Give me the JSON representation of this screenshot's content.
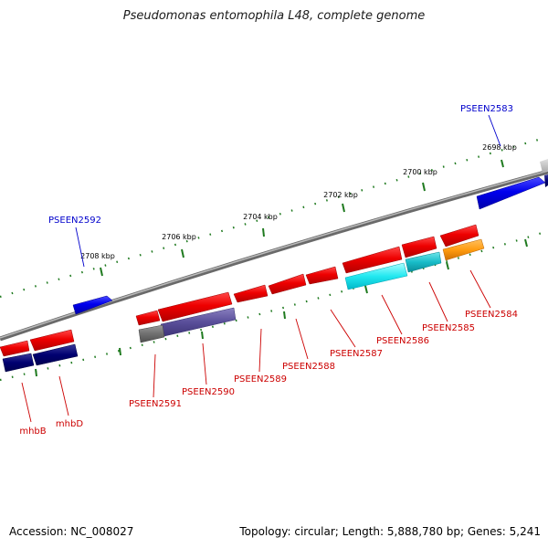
{
  "title": "Pseudomonas entomophila L48, complete genome",
  "footer": {
    "accession": "Accession: NC_008027",
    "info": "Topology: circular; Length: 5,888,780 bp; Genes: 5,241"
  },
  "colors": {
    "backbone": "#808080",
    "tick": "#1f7a1f",
    "forward_gene": "#0000ee",
    "label_blue": "#0000cc",
    "label_red": "#cc0000",
    "reverse_gene": "#ee0000"
  },
  "ruler": [
    {
      "label": "2698 kbp"
    },
    {
      "label": "2700 kbp"
    },
    {
      "label": "2702 kbp"
    },
    {
      "label": "2704 kbp"
    },
    {
      "label": "2706 kbp"
    },
    {
      "label": "2708 kbp"
    }
  ],
  "gene_labels": [
    {
      "label": "PSEEN2583",
      "strand": "forward"
    },
    {
      "label": "PSEEN2592",
      "strand": "forward"
    },
    {
      "label": "PSEEN2584",
      "strand": "reverse"
    },
    {
      "label": "PSEEN2585",
      "strand": "reverse"
    },
    {
      "label": "PSEEN2586",
      "strand": "reverse"
    },
    {
      "label": "PSEEN2587",
      "strand": "reverse"
    },
    {
      "label": "PSEEN2588",
      "strand": "reverse"
    },
    {
      "label": "PSEEN2589",
      "strand": "reverse"
    },
    {
      "label": "PSEEN2590",
      "strand": "reverse"
    },
    {
      "label": "PSEEN2591",
      "strand": "reverse"
    },
    {
      "label": "mhbD",
      "strand": "reverse"
    },
    {
      "label": "mhbB",
      "strand": "reverse"
    }
  ]
}
